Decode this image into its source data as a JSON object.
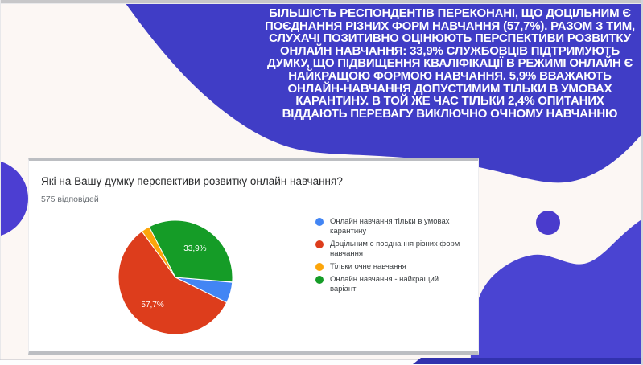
{
  "slide": {
    "summary_text": "БІЛЬШІСТЬ РЕСПОНДЕНТІВ ПЕРЕКОНАНІ, ЩО ДОЦІЛЬНИМ Є ПОЄДНАННЯ РІЗНИХ ФОРМ НАВЧАННЯ (57,7%). РАЗОМ З ТИМ, СЛУХАЧІ ПОЗИТИВНО ОЦІНЮЮТЬ ПЕРСПЕКТИВИ РОЗВИТКУ ОНЛАЙН НАВЧАННЯ: 33,9% СЛУЖБОВЦІВ ПІДТРИМУЮТЬ ДУМКУ, ЩО ПІДВИЩЕННЯ КВАЛІФІКАЦІЇ В РЕЖИМІ ОНЛАЙН Є НАЙКРАЩОЮ ФОРМОЮ НАВЧАННЯ. 5,9% ВВАЖАЮТЬ ОНЛАЙН-НАВЧАННЯ ДОПУСТИМИМ ТІЛЬКИ В УМОВАХ КАРАНТИНУ. В ТОЙ ЖЕ ЧАС ТІЛЬКИ 2,4% ОПИТАНИХ ВІДДАЮТЬ ПЕРЕВАГУ ВИКЛЮЧНО ОЧНОМУ НАВЧАННЮ",
    "colors": {
      "top_shape": "#403DC6",
      "bottom_shape": "#4A44D2",
      "left_circle": "#4C3ED2",
      "small_circle": "#4A3BCC",
      "bottom_bar": "#3232AE"
    }
  },
  "form_card": {
    "question": "Які на Вашу думку перспективи розвитку онлайн навчання?",
    "responses_count": "575 відповідей"
  },
  "chart_data": {
    "type": "pie",
    "title": "Які на Вашу думку перспективи розвитку онлайн навчання?",
    "responses": 575,
    "responses_label": "575 відповідей",
    "start_angle_deg": 95,
    "legend_position": "right",
    "slices": [
      {
        "label": "Онлайн навчання тільки в умовах карантину",
        "value_pct": 5.9,
        "pct_label": "",
        "color": "#4285F4"
      },
      {
        "label": "Доцільним є поєднання різних форм навчання",
        "value_pct": 57.7,
        "pct_label": "57,7%",
        "color": "#DD3D1C"
      },
      {
        "label": "Тільки очне навчання",
        "value_pct": 2.4,
        "pct_label": "",
        "color": "#FCA50A"
      },
      {
        "label": "Онлайн навчання - найкращий варіант",
        "value_pct": 33.9,
        "pct_label": "33,9%",
        "color": "#159C27"
      }
    ]
  }
}
